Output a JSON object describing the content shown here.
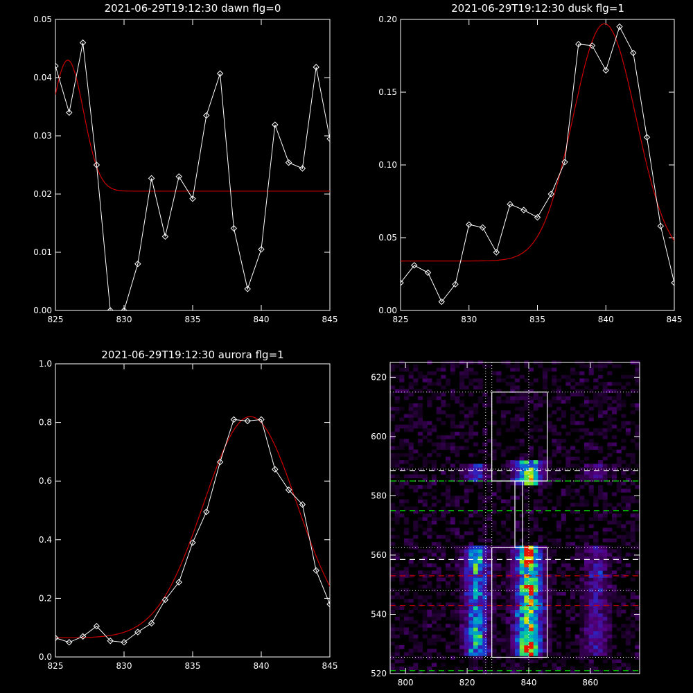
{
  "chart_data": [
    {
      "type": "line",
      "title": "2021-06-29T19:12:30 dawn flg=0",
      "xlim": [
        825,
        845
      ],
      "ylim": [
        0,
        0.05
      ],
      "xticks": [
        "825",
        "830",
        "835",
        "840",
        "845"
      ],
      "yticks": [
        "0.00",
        "0.01",
        "0.02",
        "0.03",
        "0.04",
        "0.05"
      ],
      "colors": {
        "data": "#ffffff",
        "fit": "#cc0000"
      },
      "data": {
        "x": [
          825,
          826,
          827,
          828,
          829,
          830,
          831,
          832,
          833,
          834,
          835,
          836,
          837,
          838,
          839,
          840,
          841,
          842,
          843,
          844,
          845
        ],
        "y": [
          0.042,
          0.034,
          0.046,
          0.025,
          0.0,
          0.0,
          0.008,
          0.0227,
          0.0127,
          0.023,
          0.0192,
          0.0335,
          0.0407,
          0.0141,
          0.0037,
          0.0105,
          0.0319,
          0.0254,
          0.0244,
          0.0418,
          0.0295
        ]
      },
      "fit": {
        "baseline": 0.0205,
        "amplitude": 0.0225,
        "center": 825.9,
        "sigma": 1.15
      }
    },
    {
      "type": "line",
      "title": "2021-06-29T19:12:30 dusk flg=1",
      "xlim": [
        825,
        845
      ],
      "ylim": [
        0,
        0.2
      ],
      "xticks": [
        "825",
        "830",
        "835",
        "840",
        "845"
      ],
      "yticks": [
        "0.00",
        "0.05",
        "0.10",
        "0.15",
        "0.20"
      ],
      "colors": {
        "data": "#ffffff",
        "fit": "#cc0000"
      },
      "data": {
        "x": [
          825,
          826,
          827,
          828,
          829,
          830,
          831,
          832,
          833,
          834,
          835,
          836,
          837,
          838,
          839,
          840,
          841,
          842,
          843,
          844,
          845
        ],
        "y": [
          0.019,
          0.031,
          0.026,
          0.006,
          0.018,
          0.059,
          0.057,
          0.04,
          0.073,
          0.069,
          0.064,
          0.08,
          0.102,
          0.183,
          0.182,
          0.165,
          0.195,
          0.177,
          0.119,
          0.058,
          0.019
        ]
      },
      "fit": {
        "baseline": 0.034,
        "amplitude": 0.163,
        "center": 839.9,
        "sigma": 2.3
      }
    },
    {
      "type": "line",
      "title": "2021-06-29T19:12:30 aurora flg=1",
      "xlim": [
        825,
        845
      ],
      "ylim": [
        0,
        1.0
      ],
      "xticks": [
        "825",
        "830",
        "835",
        "840",
        "845"
      ],
      "yticks": [
        "0.0",
        "0.2",
        "0.4",
        "0.6",
        "0.8",
        "1.0"
      ],
      "colors": {
        "data": "#ffffff",
        "fit": "#cc0000"
      },
      "data": {
        "x": [
          825,
          826,
          827,
          828,
          829,
          830,
          831,
          832,
          833,
          834,
          835,
          836,
          837,
          838,
          839,
          840,
          841,
          842,
          843,
          844,
          845
        ],
        "y": [
          0.065,
          0.05,
          0.07,
          0.105,
          0.055,
          0.05,
          0.085,
          0.115,
          0.195,
          0.255,
          0.39,
          0.495,
          0.665,
          0.81,
          0.805,
          0.81,
          0.64,
          0.57,
          0.52,
          0.295,
          0.18
        ]
      },
      "fit": {
        "baseline": 0.065,
        "amplitude": 0.755,
        "center": 839.2,
        "sigma": 3.4
      }
    },
    {
      "type": "heatmap",
      "title": "",
      "xlim": [
        795,
        876
      ],
      "ylim": [
        520,
        625
      ],
      "xticks": [
        "800",
        "820",
        "840",
        "860"
      ],
      "yticks": [
        "520",
        "540",
        "560",
        "580",
        "600",
        "620"
      ],
      "columns": [
        {
          "center": 823,
          "width": 4,
          "rows": [
            [
              526,
              563,
              0.55
            ],
            [
              585,
              591,
              0.35
            ]
          ]
        },
        {
          "center": 840,
          "width": 4.5,
          "rows": [
            [
              526,
              563,
              0.82
            ],
            [
              584,
              592,
              0.7
            ]
          ]
        },
        {
          "center": 862,
          "width": 4,
          "rows": [
            [
              526,
              563,
              0.28
            ],
            [
              585,
              591,
              0.22
            ]
          ]
        }
      ],
      "hot_spots": [
        [
          840,
          560,
          1.0
        ],
        [
          840,
          529,
          0.75
        ],
        [
          840,
          549,
          0.7
        ],
        [
          840,
          587,
          0.75
        ],
        [
          823,
          532,
          0.6
        ],
        [
          823,
          558,
          0.55
        ]
      ],
      "boxes": [
        {
          "x": [
            828,
            846
          ],
          "y": [
            585,
            615
          ]
        },
        {
          "x": [
            835.5,
            838
          ],
          "y": [
            562.5,
            585
          ]
        },
        {
          "x": [
            828,
            846
          ],
          "y": [
            525.5,
            562.5
          ]
        }
      ],
      "vlines_dotted": [
        826,
        828,
        840
      ],
      "hlines_dotted": [
        615,
        589,
        562.5,
        585,
        548,
        525.5
      ],
      "hlines_dashed": [
        {
          "y": 588.5,
          "color": "#ffffff"
        },
        {
          "y": 558.5,
          "color": "#ffffff"
        },
        {
          "y": 585,
          "color": "#00cc00"
        },
        {
          "y": 575,
          "color": "#00cc00"
        },
        {
          "y": 521,
          "color": "#00cc00"
        },
        {
          "y": 553,
          "color": "#cc0000"
        },
        {
          "y": 543,
          "color": "#cc0000"
        }
      ]
    }
  ]
}
